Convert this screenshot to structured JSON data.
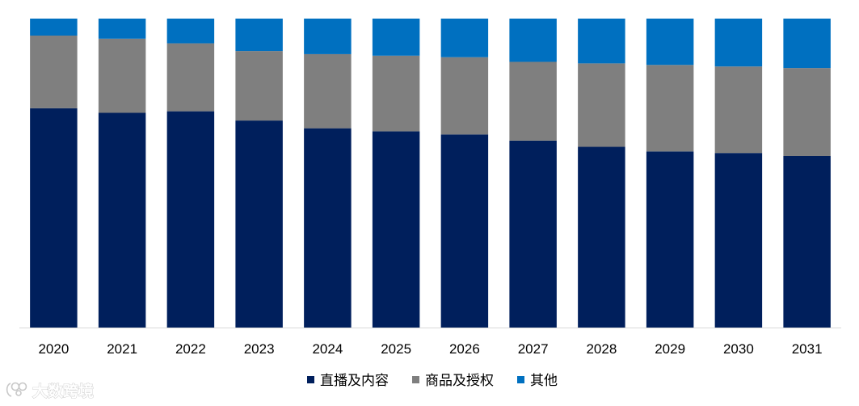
{
  "chart_data": {
    "type": "bar",
    "stacked": true,
    "normalized": true,
    "categories": [
      "2020",
      "2021",
      "2022",
      "2023",
      "2024",
      "2025",
      "2026",
      "2027",
      "2028",
      "2029",
      "2030",
      "2031"
    ],
    "series": [
      {
        "name": "直播及内容",
        "color": "#001f5c",
        "values": [
          71,
          69.5,
          70,
          67,
          64.5,
          63.5,
          62.5,
          60.5,
          58.5,
          57,
          56.5,
          55.5
        ]
      },
      {
        "name": "商品及授权",
        "color": "#7f7f7f",
        "values": [
          23.5,
          24,
          22,
          22.5,
          24,
          24.5,
          25,
          25.5,
          27,
          28,
          28,
          28.5
        ]
      },
      {
        "name": "其他",
        "color": "#0070c0",
        "values": [
          5.5,
          6.5,
          8,
          10.5,
          11.5,
          12,
          12.5,
          14,
          14.5,
          15,
          15.5,
          16
        ]
      }
    ],
    "title": "",
    "xlabel": "",
    "ylabel": "",
    "ylim": [
      0,
      100
    ],
    "grid": false,
    "legend": {
      "position": "bottom"
    }
  },
  "watermark": {
    "text": "大数跨境"
  }
}
